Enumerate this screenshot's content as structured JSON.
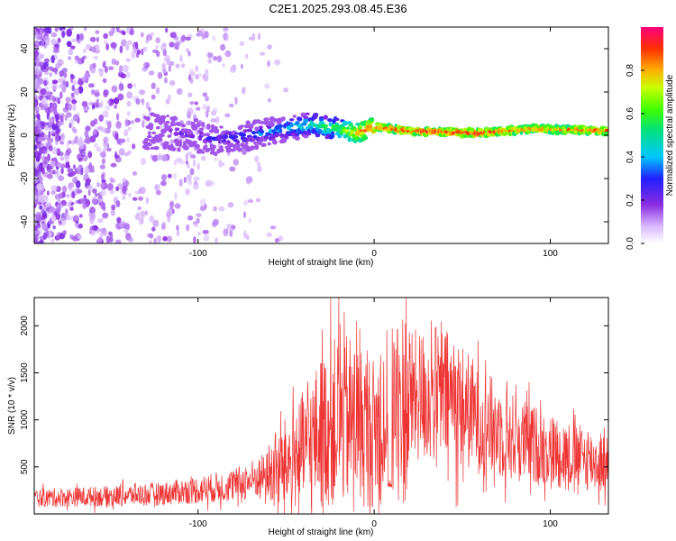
{
  "title": "C2E1.2025.293.08.45.E36",
  "chart_data": [
    {
      "type": "heatmap",
      "xlabel": "Height of straight line (km)",
      "ylabel": "Frequency (Hz)",
      "xlim": [
        -193,
        133
      ],
      "ylim": [
        -50,
        50
      ],
      "xticks": [
        "-100",
        "0",
        "100"
      ],
      "yticks": [
        "40",
        "20",
        "0",
        "-20",
        "-40"
      ],
      "colorbar": {
        "label": "Normalized spectral amplitude",
        "range": [
          0,
          1
        ],
        "ticks": [
          "0.0",
          "0.2",
          "0.4",
          "0.6",
          "0.8"
        ]
      },
      "ridge": [
        {
          "x": -130,
          "y": 2,
          "amp": 0.15
        },
        {
          "x": -110,
          "y": 1,
          "amp": 0.2
        },
        {
          "x": -90,
          "y": -2,
          "amp": 0.25
        },
        {
          "x": -70,
          "y": 0,
          "amp": 0.3
        },
        {
          "x": -50,
          "y": 3,
          "amp": 0.4
        },
        {
          "x": -35,
          "y": 5,
          "amp": 0.5
        },
        {
          "x": -20,
          "y": 3,
          "amp": 0.6
        },
        {
          "x": -10,
          "y": 1,
          "amp": 0.8
        },
        {
          "x": 0,
          "y": 4,
          "amp": 0.9
        },
        {
          "x": 20,
          "y": 2,
          "amp": 0.9
        },
        {
          "x": 60,
          "y": 1,
          "amp": 0.95
        },
        {
          "x": 90,
          "y": 3,
          "amp": 0.85
        },
        {
          "x": 130,
          "y": 2,
          "amp": 0.9
        }
      ],
      "grid": false
    },
    {
      "type": "line",
      "xlabel": "Height of straight line (km)",
      "ylabel": "SNR (10 * v/v)",
      "xlim": [
        -193,
        133
      ],
      "ylim": [
        0,
        2300
      ],
      "xticks": [
        "-100",
        "0",
        "100"
      ],
      "yticks": [
        "500",
        "1000",
        "1500",
        "2000"
      ],
      "color": "#ee3333",
      "envelope": [
        {
          "x": -193,
          "y": 180
        },
        {
          "x": -150,
          "y": 200
        },
        {
          "x": -120,
          "y": 230
        },
        {
          "x": -100,
          "y": 270
        },
        {
          "x": -80,
          "y": 320
        },
        {
          "x": -60,
          "y": 450
        },
        {
          "x": -45,
          "y": 650
        },
        {
          "x": -35,
          "y": 850
        },
        {
          "x": -25,
          "y": 1050
        },
        {
          "x": -15,
          "y": 1100
        },
        {
          "x": -5,
          "y": 1000
        },
        {
          "x": 0,
          "y": 950
        },
        {
          "x": 10,
          "y": 1200
        },
        {
          "x": 20,
          "y": 1300
        },
        {
          "x": 35,
          "y": 1350
        },
        {
          "x": 45,
          "y": 1300
        },
        {
          "x": 60,
          "y": 1050
        },
        {
          "x": 80,
          "y": 850
        },
        {
          "x": 100,
          "y": 720
        },
        {
          "x": 120,
          "y": 620
        },
        {
          "x": 133,
          "y": 550
        }
      ],
      "peaks": [
        {
          "x": -20,
          "y": 2300
        },
        {
          "x": -17,
          "y": 2150
        },
        {
          "x": -10,
          "y": 2050
        },
        {
          "x": 8,
          "y": 1780
        },
        {
          "x": -30,
          "y": 1600
        }
      ],
      "dips": [
        {
          "x": 9,
          "y": 280
        }
      ]
    }
  ]
}
